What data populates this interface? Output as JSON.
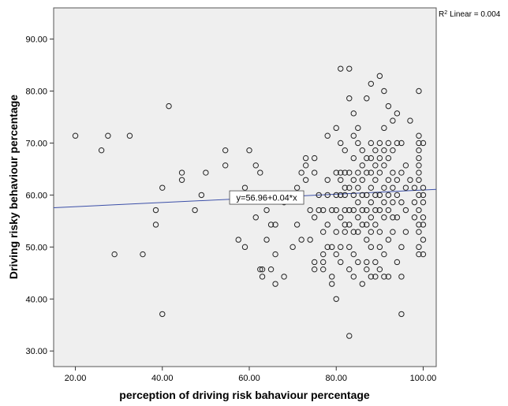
{
  "chart_data": {
    "type": "scatter",
    "xlabel": "perception of driving risk bahaviour percentage",
    "ylabel": "Driving risky behaviour percentage",
    "xlim": [
      15,
      103
    ],
    "ylim": [
      27,
      96
    ],
    "xticks": [
      "20.00",
      "40.00",
      "60.00",
      "80.00",
      "100.00"
    ],
    "yticks": [
      "30.00",
      "40.00",
      "50.00",
      "60.00",
      "70.00",
      "80.00",
      "90.00"
    ],
    "r_squared": {
      "label": "R",
      "sup": "2",
      "text": "Linear = 0.004"
    },
    "fit_line": {
      "intercept": 56.96,
      "slope": 0.04,
      "label": "y=56.96+0.04*x",
      "color": "#3b4fa8"
    },
    "colors": {
      "plot_bg": "#efefef",
      "marker": "#222222"
    },
    "marker": "open-circle",
    "grid": false,
    "points": [
      [
        20,
        71.4
      ],
      [
        26,
        68.6
      ],
      [
        27.5,
        71.4
      ],
      [
        29,
        48.6
      ],
      [
        32.5,
        71.4
      ],
      [
        35.5,
        48.6
      ],
      [
        38.5,
        57.1
      ],
      [
        38.5,
        54.3
      ],
      [
        40,
        61.4
      ],
      [
        40,
        37.1
      ],
      [
        41.5,
        77.1
      ],
      [
        44.5,
        62.9
      ],
      [
        44.5,
        64.3
      ],
      [
        47.5,
        57.1
      ],
      [
        49,
        60
      ],
      [
        50,
        64.3
      ],
      [
        54.5,
        65.7
      ],
      [
        54.5,
        68.6
      ],
      [
        57.5,
        51.4
      ],
      [
        59,
        50
      ],
      [
        59,
        61.4
      ],
      [
        60,
        68.6
      ],
      [
        61.5,
        65.7
      ],
      [
        61.5,
        55.7
      ],
      [
        62.5,
        64.3
      ],
      [
        62.5,
        45.7
      ],
      [
        63,
        44.3
      ],
      [
        63,
        45.7
      ],
      [
        64,
        51.4
      ],
      [
        64,
        57.1
      ],
      [
        65,
        54.3
      ],
      [
        65,
        45.7
      ],
      [
        66,
        48.6
      ],
      [
        66,
        54.3
      ],
      [
        66,
        42.9
      ],
      [
        68,
        58.6
      ],
      [
        68,
        44.3
      ],
      [
        70,
        60
      ],
      [
        70,
        50
      ],
      [
        71,
        54.3
      ],
      [
        71,
        61.4
      ],
      [
        72,
        51.4
      ],
      [
        72,
        64.3
      ],
      [
        73,
        65.7
      ],
      [
        73,
        62.9
      ],
      [
        73,
        67.1
      ],
      [
        74,
        57.1
      ],
      [
        74,
        51.4
      ],
      [
        75,
        45.7
      ],
      [
        75,
        47.1
      ],
      [
        75,
        55.7
      ],
      [
        75,
        64.3
      ],
      [
        75,
        67.1
      ],
      [
        76,
        60
      ],
      [
        76,
        57.1
      ],
      [
        77,
        45.7
      ],
      [
        77,
        47.1
      ],
      [
        77,
        48.6
      ],
      [
        77,
        52.9
      ],
      [
        77,
        57.1
      ],
      [
        78,
        50
      ],
      [
        78,
        54.3
      ],
      [
        78,
        60
      ],
      [
        78,
        62.9
      ],
      [
        78,
        71.4
      ],
      [
        79,
        42.9
      ],
      [
        79,
        44.3
      ],
      [
        79,
        50
      ],
      [
        79,
        57.1
      ],
      [
        80,
        40
      ],
      [
        80,
        48.6
      ],
      [
        80,
        52.9
      ],
      [
        80,
        57.1
      ],
      [
        80,
        60
      ],
      [
        80,
        64.3
      ],
      [
        80,
        72.9
      ],
      [
        81,
        47.1
      ],
      [
        81,
        50
      ],
      [
        81,
        55.7
      ],
      [
        81,
        60
      ],
      [
        81,
        62.9
      ],
      [
        81,
        64.3
      ],
      [
        81,
        70
      ],
      [
        81,
        84.3
      ],
      [
        82,
        52.9
      ],
      [
        82,
        54.3
      ],
      [
        82,
        57.1
      ],
      [
        82,
        60
      ],
      [
        82,
        61.4
      ],
      [
        82,
        64.3
      ],
      [
        82,
        68.6
      ],
      [
        83,
        32.9
      ],
      [
        83,
        45.7
      ],
      [
        83,
        50
      ],
      [
        83,
        54.3
      ],
      [
        83,
        57.1
      ],
      [
        83,
        61.4
      ],
      [
        83,
        64.3
      ],
      [
        83,
        78.6
      ],
      [
        83,
        84.3
      ],
      [
        84,
        44.3
      ],
      [
        84,
        48.6
      ],
      [
        84,
        52.9
      ],
      [
        84,
        57.1
      ],
      [
        84,
        60
      ],
      [
        84,
        62.9
      ],
      [
        84,
        67.1
      ],
      [
        84,
        71.4
      ],
      [
        84,
        75.7
      ],
      [
        85,
        47.1
      ],
      [
        85,
        52.9
      ],
      [
        85,
        55.7
      ],
      [
        85,
        58.6
      ],
      [
        85,
        61.4
      ],
      [
        85,
        64.3
      ],
      [
        85,
        70
      ],
      [
        85,
        72.9
      ],
      [
        86,
        42.9
      ],
      [
        86,
        54.3
      ],
      [
        86,
        57.1
      ],
      [
        86,
        60
      ],
      [
        86,
        62.9
      ],
      [
        86,
        65.7
      ],
      [
        86,
        68.6
      ],
      [
        87,
        45.7
      ],
      [
        87,
        47.1
      ],
      [
        87,
        51.4
      ],
      [
        87,
        54.3
      ],
      [
        87,
        57.1
      ],
      [
        87,
        60
      ],
      [
        87,
        64.3
      ],
      [
        87,
        67.1
      ],
      [
        87,
        78.6
      ],
      [
        88,
        44.3
      ],
      [
        88,
        50
      ],
      [
        88,
        52.9
      ],
      [
        88,
        55.7
      ],
      [
        88,
        58.6
      ],
      [
        88,
        61.4
      ],
      [
        88,
        64.3
      ],
      [
        88,
        67.1
      ],
      [
        88,
        70
      ],
      [
        88,
        81.4
      ],
      [
        89,
        44.3
      ],
      [
        89,
        47.1
      ],
      [
        89,
        54.3
      ],
      [
        89,
        57.1
      ],
      [
        89,
        60
      ],
      [
        89,
        62.9
      ],
      [
        89,
        65.7
      ],
      [
        89,
        68.6
      ],
      [
        90,
        45.7
      ],
      [
        90,
        50
      ],
      [
        90,
        52.9
      ],
      [
        90,
        57.1
      ],
      [
        90,
        60
      ],
      [
        90,
        64.3
      ],
      [
        90,
        67.1
      ],
      [
        90,
        70
      ],
      [
        90,
        82.9
      ],
      [
        91,
        44.3
      ],
      [
        91,
        48.6
      ],
      [
        91,
        55.7
      ],
      [
        91,
        58.6
      ],
      [
        91,
        61.4
      ],
      [
        91,
        65.7
      ],
      [
        91,
        68.6
      ],
      [
        91,
        72.9
      ],
      [
        91,
        80
      ],
      [
        92,
        44.3
      ],
      [
        92,
        51.4
      ],
      [
        92,
        57.1
      ],
      [
        92,
        60
      ],
      [
        92,
        62.9
      ],
      [
        92,
        67.1
      ],
      [
        92,
        70
      ],
      [
        92,
        77.1
      ],
      [
        93,
        52.9
      ],
      [
        93,
        55.7
      ],
      [
        93,
        58.6
      ],
      [
        93,
        61.4
      ],
      [
        93,
        64.3
      ],
      [
        93,
        68.6
      ],
      [
        93,
        74.3
      ],
      [
        94,
        47.1
      ],
      [
        94,
        55.7
      ],
      [
        94,
        60
      ],
      [
        94,
        62.9
      ],
      [
        94,
        70
      ],
      [
        94,
        75.7
      ],
      [
        95,
        37.1
      ],
      [
        95,
        44.3
      ],
      [
        95,
        50
      ],
      [
        95,
        58.6
      ],
      [
        95,
        64.3
      ],
      [
        95,
        70
      ],
      [
        96,
        52.9
      ],
      [
        96,
        57.1
      ],
      [
        96,
        61.4
      ],
      [
        96,
        65.7
      ],
      [
        97,
        62.9
      ],
      [
        97,
        74.3
      ],
      [
        98,
        55.7
      ],
      [
        98,
        58.6
      ],
      [
        98,
        61.4
      ],
      [
        99,
        48.6
      ],
      [
        99,
        50
      ],
      [
        99,
        52.9
      ],
      [
        99,
        54.3
      ],
      [
        99,
        57.1
      ],
      [
        99,
        60
      ],
      [
        99,
        62.9
      ],
      [
        99,
        64.3
      ],
      [
        99,
        65.7
      ],
      [
        99,
        67.1
      ],
      [
        99,
        68.6
      ],
      [
        99,
        70
      ],
      [
        99,
        71.4
      ],
      [
        99,
        80
      ],
      [
        100,
        48.6
      ],
      [
        100,
        51.4
      ],
      [
        100,
        54.3
      ],
      [
        100,
        55.7
      ],
      [
        100,
        58.6
      ],
      [
        100,
        60
      ],
      [
        100,
        61.4
      ],
      [
        100,
        70
      ]
    ]
  }
}
